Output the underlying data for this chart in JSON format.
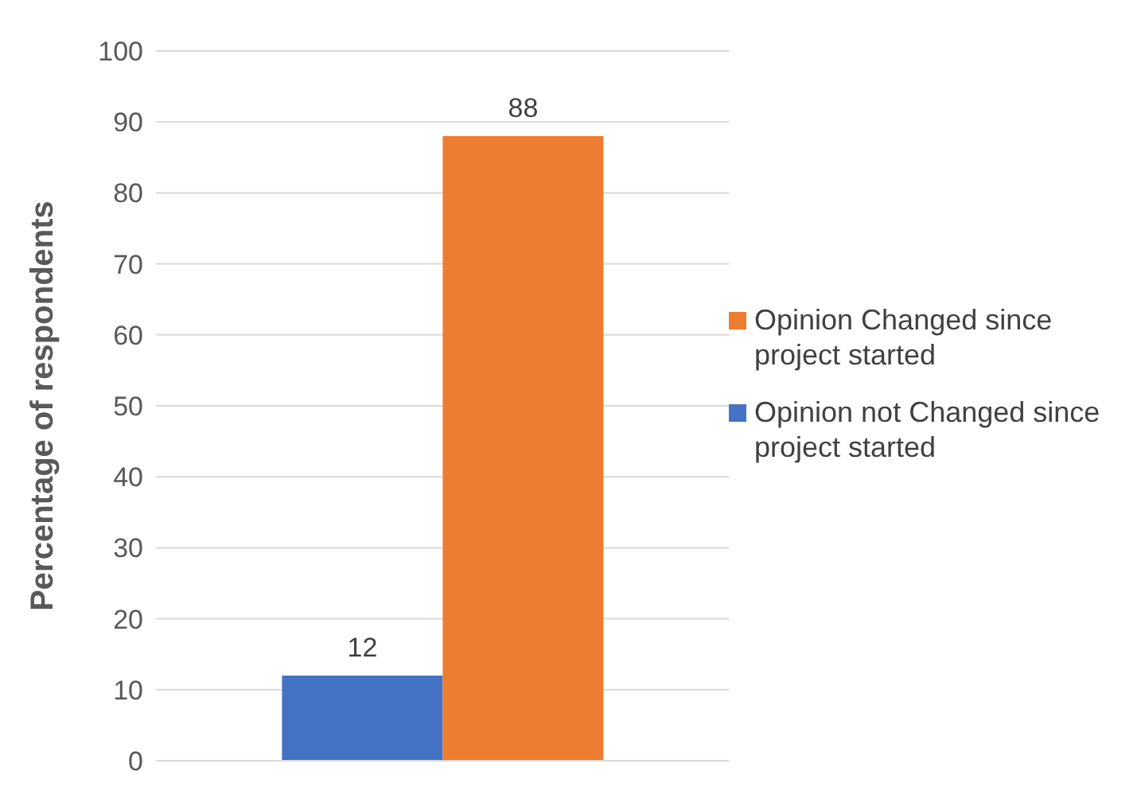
{
  "chart_data": {
    "type": "bar",
    "ylabel": "Percentage of respondents",
    "categories": [
      null
    ],
    "series": [
      {
        "name": "Opinion not Changed since project started",
        "color": "#4472c4",
        "values": [
          12
        ]
      },
      {
        "name": "Opinion Changed since project started",
        "color": "#ed7d31",
        "values": [
          88
        ]
      }
    ],
    "ylim": [
      0,
      100
    ],
    "yticks": [
      0,
      10,
      20,
      30,
      40,
      50,
      60,
      70,
      80,
      90,
      100
    ],
    "grid": "y",
    "legend": "right",
    "data_labels": true
  }
}
